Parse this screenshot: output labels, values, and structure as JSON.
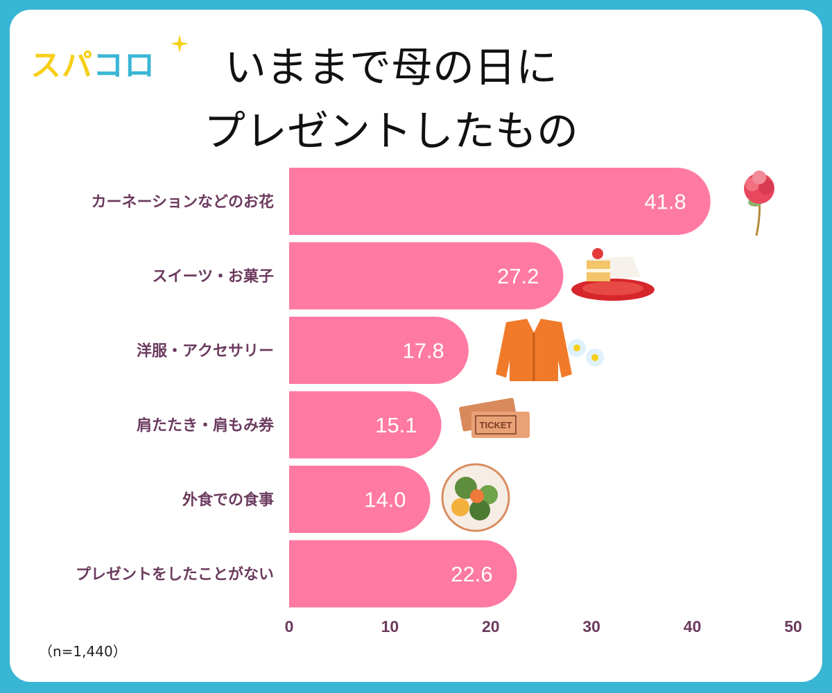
{
  "logo": {
    "part1": "スパ",
    "part2": "コロ"
  },
  "title": {
    "line1": "いままで母の日に",
    "line2": "プレゼントしたもの"
  },
  "sample_note": "（n=1,440）",
  "colors": {
    "bar": "#ff7aa2",
    "label": "#6b3a5e",
    "value": "#ffffff",
    "frame": "#3ab6d5"
  },
  "chart_data": {
    "type": "bar",
    "orientation": "horizontal",
    "categories": [
      "カーネーションなどのお花",
      "スイーツ・お菓子",
      "洋服・アクセサリー",
      "肩たたき・肩もみ券",
      "外食での食事",
      "プレゼントをしたことがない"
    ],
    "values": [
      41.8,
      27.2,
      17.8,
      15.1,
      14.0,
      22.6
    ],
    "value_labels": [
      "41.8",
      "27.2",
      "17.8",
      "15.1",
      "14.0",
      "22.6"
    ],
    "xlim": [
      0,
      50
    ],
    "xticks": [
      "0",
      "10",
      "20",
      "30",
      "40",
      "50"
    ],
    "grid": false,
    "icons": [
      "carnation-icon",
      "cake-icon",
      "cardigan-icon",
      "ticket-icon",
      "salad-plate-icon",
      ""
    ]
  }
}
